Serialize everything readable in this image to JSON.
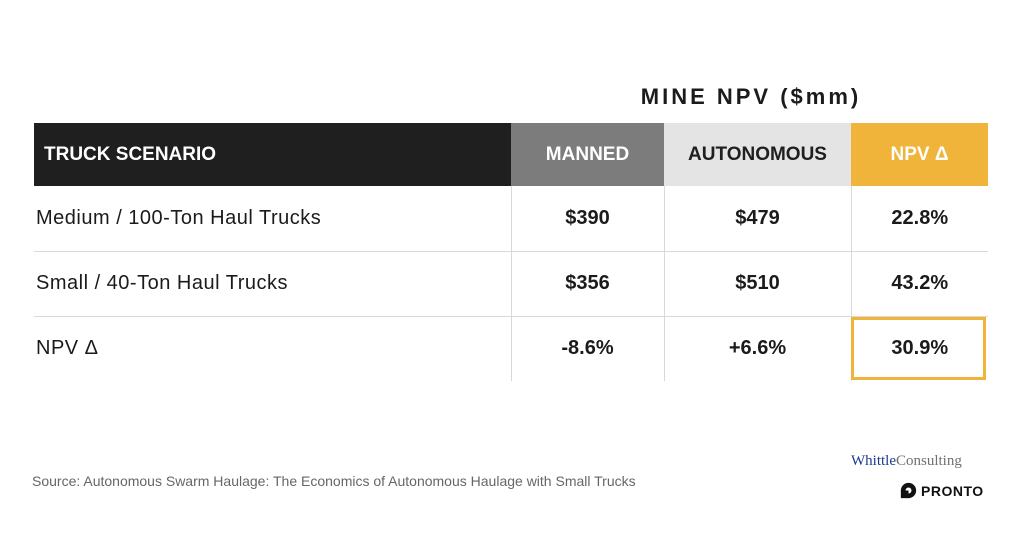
{
  "section_title": "MINE NPV ($mm)",
  "table": {
    "headers": {
      "label": "TRUCK SCENARIO",
      "manned": "MANNED",
      "autonomous": "AUTONOMOUS",
      "delta": "NPV Δ"
    },
    "header_colors": {
      "label": "#1f1f1f",
      "manned": "#7c7c7c",
      "autonomous": "#e4e4e4",
      "delta": "#f0b43a"
    },
    "rows": [
      {
        "label": "Medium / 100-Ton Haul Trucks",
        "manned": "$390",
        "autonomous": "$479",
        "delta": "22.8%"
      },
      {
        "label": "Small / 40-Ton Haul Trucks",
        "manned": "$356",
        "autonomous": "$510",
        "delta": "43.2%"
      },
      {
        "label": "NPV Δ",
        "manned": "-8.6%",
        "autonomous": "+6.6%",
        "delta": "30.9%"
      }
    ]
  },
  "source": "Source: Autonomous Swarm Haulage: The Economics of Autonomous Haulage with Small Trucks",
  "branding": {
    "whittle_first": "Whittle",
    "whittle_second": "Consulting",
    "pronto": "PRONTO",
    "pronto_icon": "pronto-logo-icon"
  },
  "accent_color": "#f0b43a"
}
